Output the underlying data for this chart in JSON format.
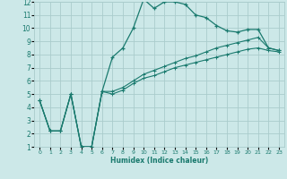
{
  "xlabel": "Humidex (Indice chaleur)",
  "ylabel": "",
  "bg_color": "#cce8e8",
  "grid_color": "#aacccc",
  "line_color": "#1a7a6e",
  "xlim": [
    -0.5,
    23.5
  ],
  "ylim": [
    1,
    12
  ],
  "yticks": [
    1,
    2,
    3,
    4,
    5,
    6,
    7,
    8,
    9,
    10,
    11,
    12
  ],
  "xticks": [
    0,
    1,
    2,
    3,
    4,
    5,
    6,
    7,
    8,
    9,
    10,
    11,
    12,
    13,
    14,
    15,
    16,
    17,
    18,
    19,
    20,
    21,
    22,
    23
  ],
  "series1_x": [
    0,
    1,
    2,
    3,
    4,
    5,
    6,
    7,
    8,
    9,
    10,
    11,
    12,
    13,
    14,
    15,
    16,
    17,
    18,
    19,
    20,
    21,
    22,
    23
  ],
  "series1_y": [
    4.5,
    2.2,
    2.2,
    5.0,
    1.0,
    1.0,
    5.2,
    7.8,
    8.5,
    10.0,
    12.2,
    11.5,
    12.0,
    12.0,
    11.8,
    11.0,
    10.8,
    10.2,
    9.8,
    9.7,
    9.9,
    9.9,
    8.5,
    8.3
  ],
  "series2_x": [
    0,
    1,
    2,
    3,
    4,
    5,
    6,
    7,
    8,
    9,
    10,
    11,
    12,
    13,
    14,
    15,
    16,
    17,
    18,
    19,
    20,
    21,
    22,
    23
  ],
  "series2_y": [
    4.5,
    2.2,
    2.2,
    5.0,
    1.0,
    1.0,
    5.2,
    5.0,
    5.3,
    5.8,
    6.2,
    6.4,
    6.7,
    7.0,
    7.2,
    7.4,
    7.6,
    7.8,
    8.0,
    8.2,
    8.4,
    8.5,
    8.3,
    8.2
  ],
  "series3_x": [
    0,
    1,
    2,
    3,
    4,
    5,
    6,
    7,
    8,
    9,
    10,
    11,
    12,
    13,
    14,
    15,
    16,
    17,
    18,
    19,
    20,
    21,
    22,
    23
  ],
  "series3_y": [
    4.5,
    2.2,
    2.2,
    5.0,
    1.0,
    1.0,
    5.2,
    5.2,
    5.5,
    6.0,
    6.5,
    6.8,
    7.1,
    7.4,
    7.7,
    7.9,
    8.2,
    8.5,
    8.7,
    8.9,
    9.1,
    9.3,
    8.5,
    8.3
  ]
}
